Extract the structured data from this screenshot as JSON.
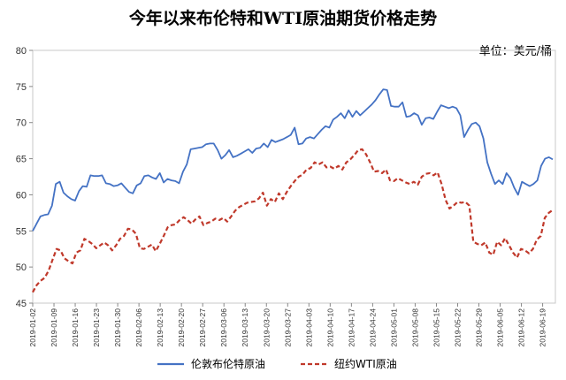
{
  "chart_data": {
    "type": "line",
    "title": "今年以来布伦特和WTI原油期货价格走势",
    "unit_label": "单位：美元/桶",
    "ylim": [
      45,
      80
    ],
    "y_ticks": [
      "45",
      "50",
      "55",
      "60",
      "65",
      "70",
      "75",
      "80"
    ],
    "grid": false,
    "legend_position": "bottom",
    "x_tick_labels": [
      "2019-01-02",
      "2019-01-09",
      "2019-01-16",
      "2019-01-23",
      "2019-01-30",
      "2019-02-06",
      "2019-02-13",
      "2019-02-20",
      "2019-02-27",
      "2019-03-06",
      "2019-03-13",
      "2019-03-20",
      "2019-03-27",
      "2019-04-03",
      "2019-04-10",
      "2019-04-17",
      "2019-04-24",
      "2019-05-01",
      "2019-05-08",
      "2019-05-15",
      "2019-05-22",
      "2019-05-29",
      "2019-06-05",
      "2019-06-12",
      "2019-06-19"
    ],
    "series": [
      {
        "name": "伦敦布伦特原油",
        "color": "#4472C4",
        "style": "solid",
        "values": [
          55.0,
          56.0,
          57.0,
          57.2,
          57.3,
          58.5,
          61.5,
          61.8,
          60.3,
          59.8,
          59.4,
          59.2,
          60.5,
          61.2,
          61.1,
          62.7,
          62.6,
          62.6,
          62.7,
          61.6,
          61.5,
          61.2,
          61.3,
          61.6,
          61.0,
          60.4,
          60.2,
          61.3,
          61.6,
          62.6,
          62.7,
          62.4,
          62.2,
          63.0,
          61.7,
          62.2,
          62.0,
          61.9,
          61.6,
          63.2,
          64.2,
          66.3,
          66.4,
          66.5,
          66.6,
          67.0,
          67.1,
          67.1,
          66.2,
          65.0,
          65.5,
          66.2,
          65.2,
          65.4,
          65.7,
          66.0,
          66.3,
          65.8,
          66.4,
          66.5,
          67.1,
          66.6,
          67.6,
          67.3,
          67.5,
          67.7,
          68.0,
          68.3,
          69.3,
          67.0,
          67.1,
          67.8,
          68.0,
          67.8,
          68.4,
          69.0,
          69.5,
          69.3,
          70.4,
          70.8,
          71.3,
          70.6,
          71.7,
          70.8,
          71.6,
          71.0,
          71.5,
          72.0,
          72.5,
          73.1,
          73.9,
          74.6,
          74.5,
          72.3,
          72.2,
          72.2,
          72.8,
          70.8,
          70.9,
          71.3,
          71.0,
          69.7,
          70.6,
          70.7,
          70.5,
          71.5,
          72.4,
          72.2,
          72.0,
          72.2,
          72.0,
          71.0,
          68.0,
          69.0,
          69.8,
          70.0,
          69.5,
          67.8,
          64.5,
          62.9,
          61.5,
          62.0,
          61.5,
          63.0,
          62.3,
          61.0,
          60.0,
          61.8,
          61.5,
          61.2,
          61.5,
          62.0,
          64.0,
          65.0,
          65.2,
          64.9
        ]
      },
      {
        "name": "纽约WTI原油",
        "color": "#C0392B",
        "style": "dashed",
        "values": [
          46.5,
          47.5,
          48.1,
          48.5,
          49.5,
          51.0,
          52.5,
          52.3,
          51.2,
          50.8,
          50.5,
          52.0,
          52.3,
          53.9,
          53.6,
          53.2,
          52.6,
          53.0,
          53.4,
          53.0,
          52.3,
          53.0,
          53.9,
          54.3,
          55.3,
          55.2,
          54.6,
          52.6,
          52.5,
          52.8,
          53.1,
          52.2,
          53.2,
          54.3,
          55.5,
          55.8,
          55.9,
          56.5,
          56.9,
          56.5,
          56.0,
          56.6,
          57.0,
          55.8,
          56.1,
          56.3,
          56.7,
          56.5,
          56.8,
          56.3,
          57.0,
          57.8,
          58.3,
          58.6,
          58.9,
          59.0,
          59.1,
          59.5,
          60.3,
          58.5,
          59.4,
          59.0,
          60.2,
          59.4,
          60.4,
          61.2,
          61.9,
          62.5,
          62.8,
          63.5,
          63.7,
          64.5,
          64.2,
          64.5,
          63.8,
          63.9,
          63.6,
          64.0,
          63.5,
          64.5,
          64.9,
          65.5,
          66.2,
          66.3,
          65.6,
          64.5,
          63.2,
          63.3,
          63.0,
          63.5,
          62.0,
          61.9,
          62.3,
          62.0,
          61.7,
          61.5,
          61.8,
          61.4,
          62.5,
          62.9,
          63.0,
          62.7,
          63.1,
          61.5,
          59.3,
          58.1,
          58.5,
          59.0,
          58.9,
          59.0,
          58.5,
          53.5,
          53.2,
          53.0,
          53.4,
          52.0,
          51.7,
          53.5,
          53.0,
          54.0,
          53.0,
          52.0,
          51.3,
          52.5,
          52.3,
          51.9,
          52.5,
          53.8,
          54.3,
          56.8,
          57.5,
          57.9
        ]
      }
    ]
  }
}
